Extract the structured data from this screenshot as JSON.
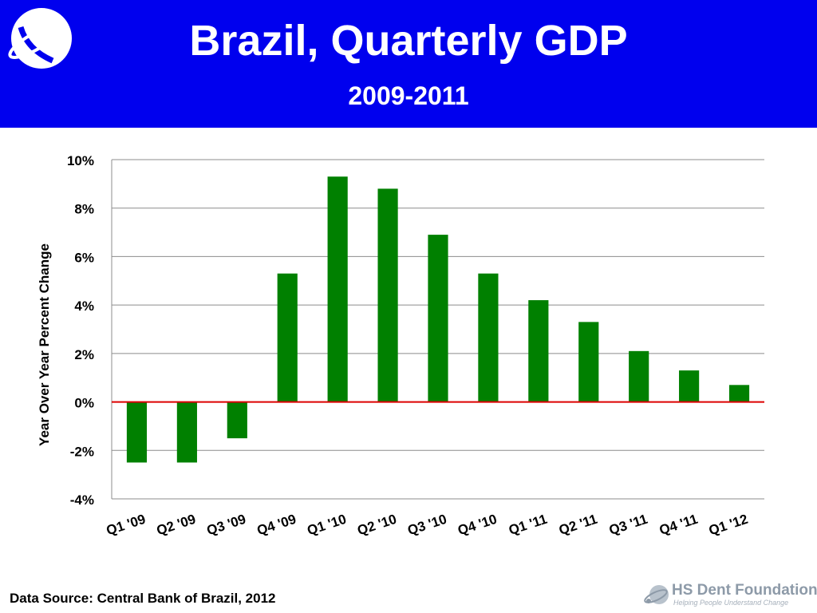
{
  "header": {
    "title": "Brazil, Quarterly GDP",
    "subtitle": "2009-2011",
    "background": "#0000ee"
  },
  "footer": {
    "source": "Data Source: Central Bank of Brazil, 2012",
    "brand_name": "HS Dent Foundation",
    "brand_tagline": "Helping People Understand Change"
  },
  "chart_data": {
    "type": "bar",
    "title": "Brazil, Quarterly GDP",
    "subtitle": "2009-2011",
    "xlabel": "",
    "ylabel": "Year Over Year Percent Change",
    "categories": [
      "Q1 '09",
      "Q2 '09",
      "Q3 '09",
      "Q4 '09",
      "Q1 '10",
      "Q2 '10",
      "Q3 '10",
      "Q4 '10",
      "Q1 '11",
      "Q2 '11",
      "Q3 '11",
      "Q4 '11",
      "Q1 '12"
    ],
    "values": [
      -2.5,
      -2.5,
      -1.5,
      5.3,
      9.3,
      8.8,
      6.9,
      5.3,
      4.2,
      3.3,
      2.1,
      1.3,
      0.7
    ],
    "ylim": [
      -4,
      10
    ],
    "yticks": [
      10,
      8,
      6,
      4,
      2,
      0,
      -2,
      -4
    ],
    "ytick_labels": [
      "10%",
      "8%",
      "6%",
      "4%",
      "2%",
      "0%",
      "-2%",
      "-4%"
    ],
    "bar_color": "#008000",
    "zero_line_color": "#dd0000",
    "grid": true,
    "legend": "none"
  }
}
